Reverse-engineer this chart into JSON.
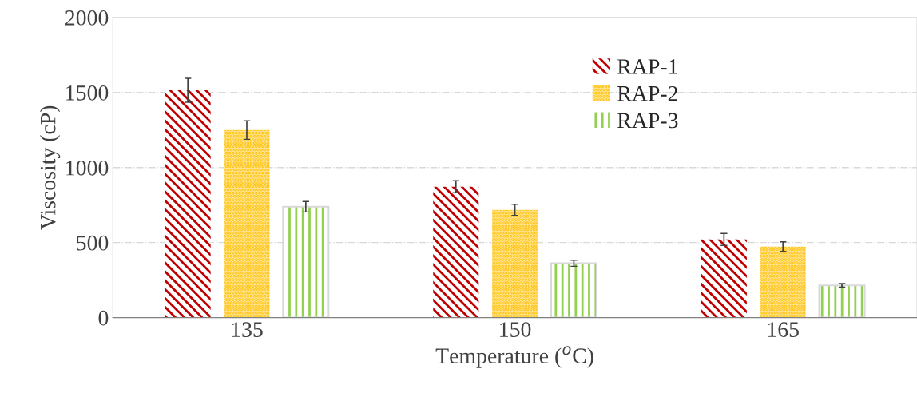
{
  "chart_data": {
    "type": "bar",
    "xlabel": "Temperature ($^{o}$C)",
    "ylabel": "Viscosity (cP)",
    "categories": [
      "135",
      "150",
      "165"
    ],
    "series": [
      {
        "name": "RAP-1",
        "color": "#c00000",
        "values": [
          1515,
          872,
          521
        ],
        "errors": [
          80,
          40,
          40
        ]
      },
      {
        "name": "RAP-2",
        "color": "#ffc000",
        "values": [
          1250,
          718,
          473
        ],
        "errors": [
          62,
          37,
          32
        ]
      },
      {
        "name": "RAP-3",
        "color": "#92d050",
        "values": [
          739,
          362,
          215
        ],
        "errors": [
          35,
          20,
          12
        ]
      }
    ],
    "ylim": [
      0,
      2000
    ],
    "yticks": [
      0,
      500,
      1000,
      1500,
      2000
    ],
    "grid": "y",
    "legend": "top center"
  }
}
